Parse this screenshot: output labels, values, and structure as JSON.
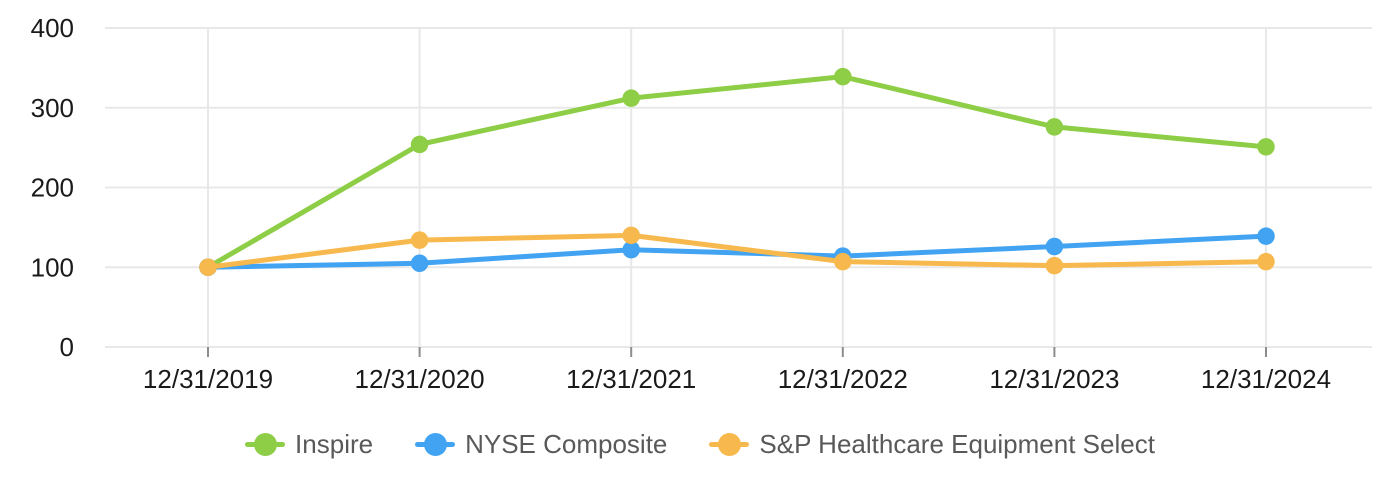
{
  "chart_data": {
    "type": "line",
    "categories": [
      "12/31/2019",
      "12/31/2020",
      "12/31/2021",
      "12/31/2022",
      "12/31/2023",
      "12/31/2024"
    ],
    "series": [
      {
        "name": "Inspire",
        "color": "#8DCE46",
        "values": [
          100,
          254,
          312,
          339,
          276,
          251
        ]
      },
      {
        "name": "NYSE Composite",
        "color": "#41A3F1",
        "values": [
          100,
          105,
          122,
          114,
          126,
          139
        ]
      },
      {
        "name": "S&P Healthcare Equipment Select",
        "color": "#F7B94D",
        "values": [
          100,
          134,
          140,
          107,
          102,
          107
        ]
      }
    ],
    "yticks": [
      0,
      100,
      200,
      300,
      400
    ],
    "ylim": [
      0,
      400
    ],
    "grid": true,
    "legend_position": "bottom",
    "colors": {
      "axis_text": "#1A1A1A",
      "legend_text": "#595959",
      "gridline": "#E8E8E8",
      "tick": "#8C8C8C",
      "background": "#FFFFFF"
    }
  }
}
